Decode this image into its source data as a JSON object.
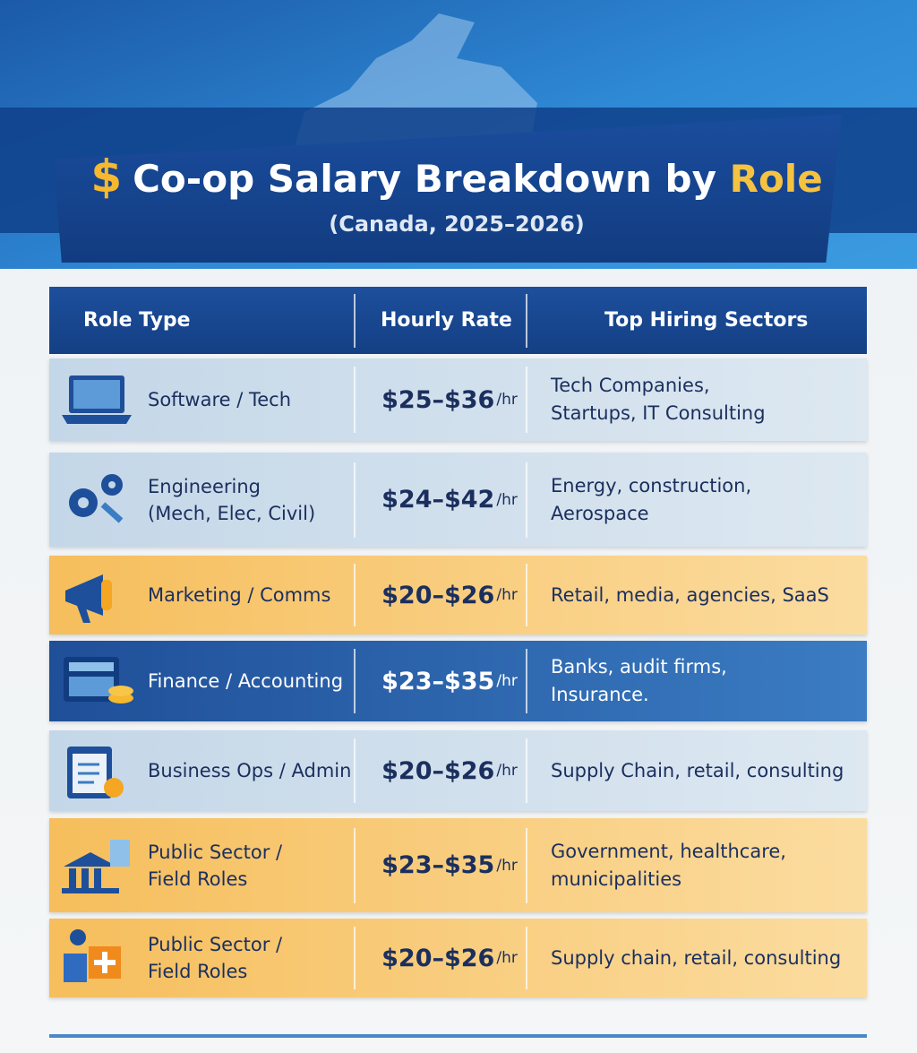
{
  "header": {
    "icon": "$",
    "title": "Co-op Salary Breakdown by",
    "title_highlight": "Role",
    "subtitle": "(Canada, 2025–2026)"
  },
  "table": {
    "columns": [
      "Role Type",
      "Hourly Rate",
      "Top Hiring Sectors"
    ],
    "rows": [
      {
        "role": [
          "Software / Tech"
        ],
        "rate": "$25–$36",
        "unit": "/hr",
        "sectors": [
          "Tech Companies,",
          "Startups, IT Consulting"
        ]
      },
      {
        "role": [
          "Engineering",
          "(Mech, Elec, Civil)"
        ],
        "rate": "$24–$42",
        "unit": "/hr",
        "sectors": [
          "Energy, construction,",
          "Aerospace"
        ]
      },
      {
        "role": [
          "Marketing / Comms"
        ],
        "rate": "$20–$26",
        "unit": "/hr",
        "sectors": [
          "Retail, media, agencies, SaaS"
        ]
      },
      {
        "role": [
          "Finance / Accounting"
        ],
        "rate": "$23–$35",
        "unit": "/hr",
        "sectors": [
          "Banks, audit firms,",
          "Insurance."
        ]
      },
      {
        "role": [
          "Business Ops / Admin"
        ],
        "rate": "$20–$26",
        "unit": "/hr",
        "sectors": [
          "Supply Chain, retail, consulting"
        ]
      },
      {
        "role": [
          "Public Sector /",
          "Field Roles"
        ],
        "rate": "$23–$35",
        "unit": "/hr",
        "sectors": [
          "Government, healthcare,",
          "municipalities"
        ]
      },
      {
        "role": [
          "Public Sector /",
          "Field Roles"
        ],
        "rate": "$20–$26",
        "unit": "/hr",
        "sectors": [
          "Supply chain, retail, consulting"
        ]
      }
    ]
  }
}
